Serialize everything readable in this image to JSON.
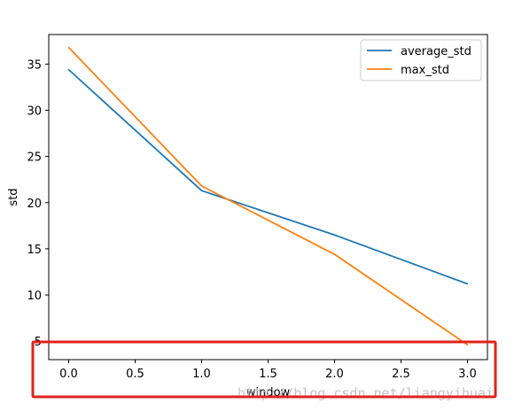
{
  "chart_data": {
    "type": "line",
    "xlabel": "window",
    "ylabel": "std",
    "x": [
      0.0,
      1.0,
      2.0,
      3.0
    ],
    "xlim": [
      -0.15,
      3.15
    ],
    "ylim": [
      3.0,
      38.2
    ],
    "xticks": [
      "0.0",
      "0.5",
      "1.0",
      "1.5",
      "2.0",
      "2.5",
      "3.0"
    ],
    "yticks": [
      "5",
      "10",
      "15",
      "20",
      "25",
      "30",
      "35"
    ],
    "series": [
      {
        "name": "average_std",
        "color": "#1f77b4",
        "values": [
          34.4,
          21.3,
          16.5,
          11.2
        ]
      },
      {
        "name": "max_std",
        "color": "#ff7f0e",
        "values": [
          36.8,
          21.8,
          14.4,
          4.6
        ]
      }
    ],
    "grid": false,
    "legend": "top-right"
  },
  "annotation": {
    "type": "red-rectangle",
    "color": "#e0221c"
  },
  "watermark": "http://blog.csdn.net/liangyihuai"
}
